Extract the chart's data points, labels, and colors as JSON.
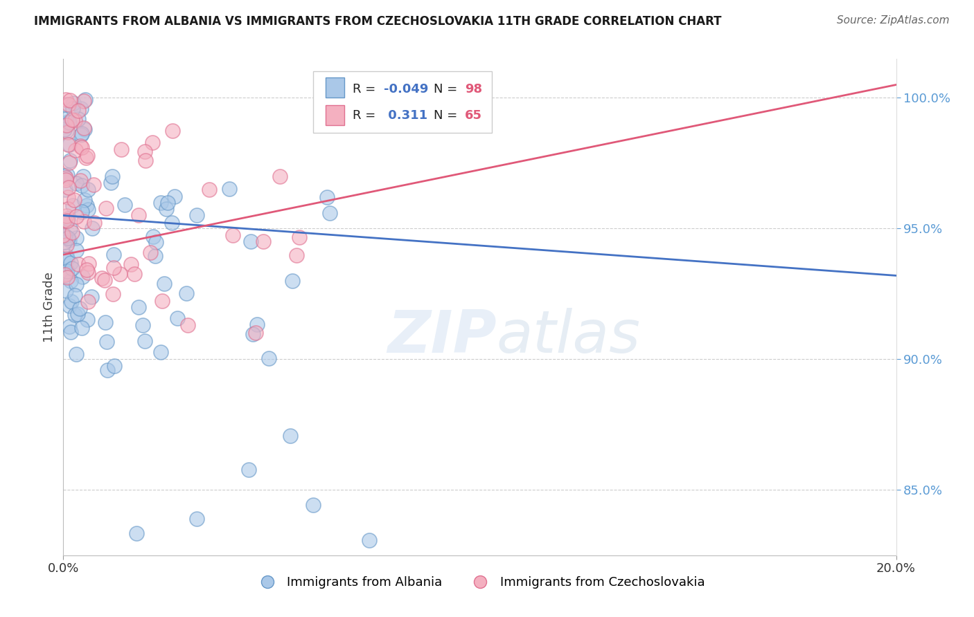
{
  "title": "IMMIGRANTS FROM ALBANIA VS IMMIGRANTS FROM CZECHOSLOVAKIA 11TH GRADE CORRELATION CHART",
  "source": "Source: ZipAtlas.com",
  "ylabel": "11th Grade",
  "albania_label": "Immigrants from Albania",
  "czechoslovakia_label": "Immigrants from Czechoslovakia",
  "albania_R": -0.049,
  "albania_N": 98,
  "czechoslovakia_R": 0.311,
  "czechoslovakia_N": 65,
  "albania_dot_color": "#aac8e8",
  "albania_edge_color": "#6698c8",
  "albania_line_color": "#4472c4",
  "czechoslovakia_dot_color": "#f4b0c0",
  "czechoslovakia_edge_color": "#e07090",
  "czechoslovakia_line_color": "#e05878",
  "right_yticks": [
    85.0,
    90.0,
    95.0,
    100.0
  ],
  "grid_color": "#cccccc",
  "background_color": "#ffffff",
  "title_color": "#1a1a1a",
  "source_color": "#666666",
  "right_axis_color": "#5b9bd5",
  "watermark_color": "#c8dcf0",
  "legend_R_color": "#4472c4",
  "legend_N_color": "#e05878"
}
